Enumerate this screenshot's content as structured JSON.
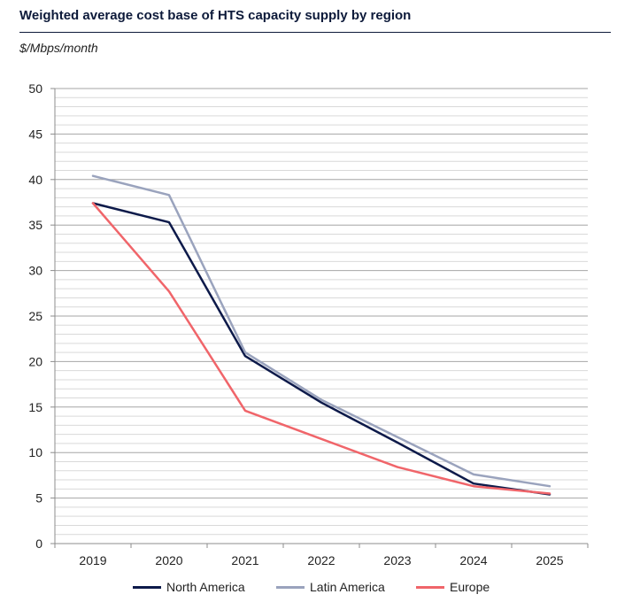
{
  "header": {
    "title": "Weighted average cost base of HTS capacity supply by region",
    "unit": "$/Mbps/month"
  },
  "chart_data": {
    "type": "line",
    "title": "Weighted average cost base of HTS capacity supply by region",
    "ylabel": "$/Mbps/month",
    "xlabel": "",
    "x": [
      "2019",
      "2020",
      "2021",
      "2022",
      "2023",
      "2024",
      "2025"
    ],
    "ylim": [
      0,
      50
    ],
    "yticks": [
      0,
      5,
      10,
      15,
      20,
      25,
      30,
      35,
      40,
      45,
      50
    ],
    "minor_grid_step": 1,
    "grid": true,
    "legend_position": "bottom",
    "series": [
      {
        "name": "North America",
        "color": "#0d1a4a",
        "values": [
          37.4,
          35.3,
          20.6,
          15.5,
          11.1,
          6.6,
          5.4
        ]
      },
      {
        "name": "Latin America",
        "color": "#9aa3bd",
        "values": [
          40.4,
          38.3,
          21.0,
          15.8,
          11.7,
          7.6,
          6.3
        ]
      },
      {
        "name": "Europe",
        "color": "#f0656a",
        "values": [
          37.4,
          27.7,
          14.6,
          11.5,
          8.4,
          6.3,
          5.5
        ]
      }
    ]
  }
}
